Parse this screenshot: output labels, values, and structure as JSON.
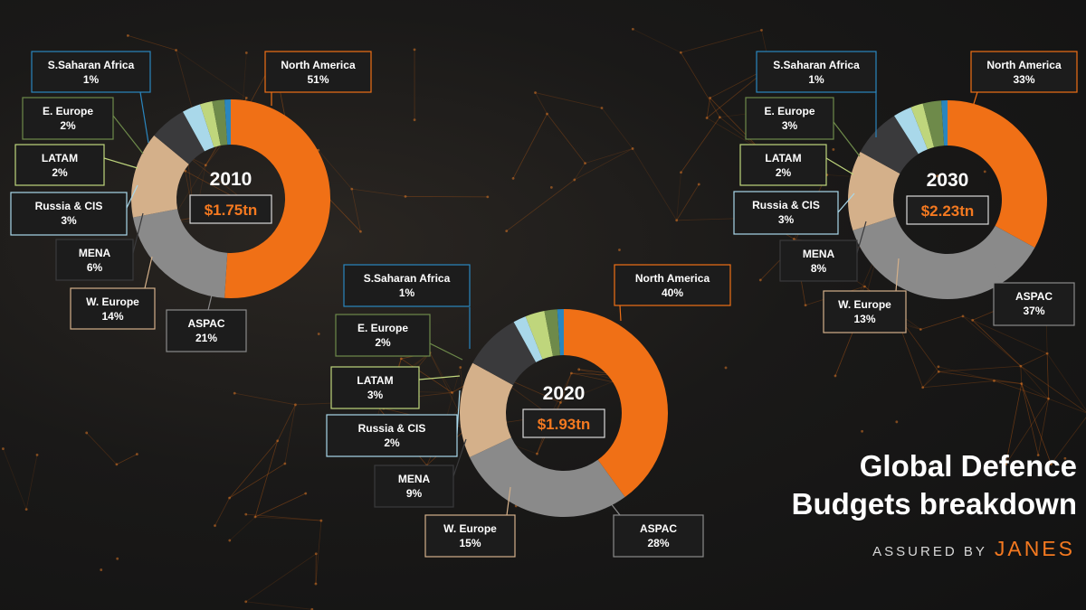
{
  "title": {
    "line1": "Global Defence",
    "line2": "Budgets breakdown"
  },
  "brand": {
    "prefix": "ASSURED BY",
    "name": "JANES"
  },
  "colors": {
    "North America": "#f07016",
    "ASPAC": "#8a8a8a",
    "W. Europe": "#d4b08a",
    "MENA": "#3a3a3c",
    "Russia & CIS": "#a9d8ea",
    "LATAM": "#bfd67c",
    "E. Europe": "#6e8a4a",
    "S.Saharan Africa": "#2a86bf"
  },
  "chart_data": [
    {
      "type": "pie",
      "title": "2010",
      "total": "$1.75tn",
      "categories": [
        "North America",
        "ASPAC",
        "W. Europe",
        "MENA",
        "Russia & CIS",
        "LATAM",
        "E. Europe",
        "S.Saharan Africa"
      ],
      "values": [
        51,
        21,
        14,
        6,
        3,
        2,
        2,
        1
      ],
      "labels": [
        "51%",
        "21%",
        "14%",
        "6%",
        "3%",
        "2%",
        "2%",
        "1%"
      ]
    },
    {
      "type": "pie",
      "title": "2020",
      "total": "$1.93tn",
      "categories": [
        "North America",
        "ASPAC",
        "W. Europe",
        "MENA",
        "Russia & CIS",
        "LATAM",
        "E. Europe",
        "S.Saharan Africa"
      ],
      "values": [
        40,
        28,
        15,
        9,
        2,
        3,
        2,
        1
      ],
      "labels": [
        "40%",
        "28%",
        "15%",
        "9%",
        "2%",
        "3%",
        "2%",
        "1%"
      ]
    },
    {
      "type": "pie",
      "title": "2030",
      "total": "$2.23tn",
      "categories": [
        "North America",
        "ASPAC",
        "W. Europe",
        "MENA",
        "Russia & CIS",
        "LATAM",
        "E. Europe",
        "S.Saharan Africa"
      ],
      "values": [
        33,
        37,
        13,
        8,
        3,
        2,
        3,
        1
      ],
      "labels": [
        "33%",
        "37%",
        "13%",
        "8%",
        "3%",
        "2%",
        "3%",
        "1%"
      ]
    }
  ]
}
